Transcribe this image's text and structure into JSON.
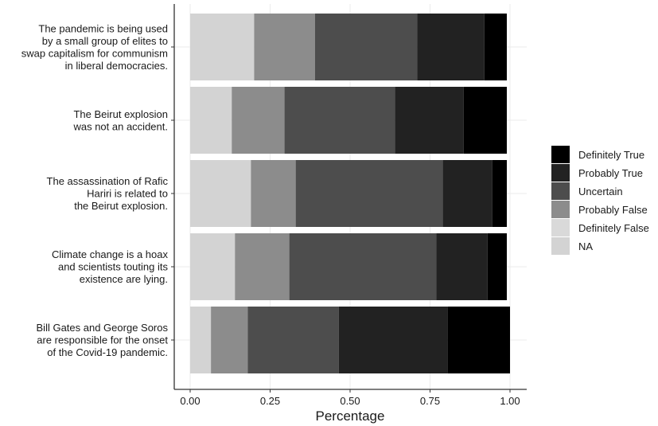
{
  "chart_data": {
    "type": "bar",
    "orientation": "horizontal",
    "stacked": true,
    "xlabel": "Percentage",
    "ylabel": "",
    "xlim": [
      0,
      1
    ],
    "x_ticks": [
      "0.00",
      "0.25",
      "0.50",
      "0.75",
      "1.00"
    ],
    "x_tick_values": [
      0,
      0.25,
      0.5,
      0.75,
      1.0
    ],
    "grid": true,
    "legend_position": "right",
    "categories": [
      [
        "The pandemic is being used",
        "by a small group of elites to",
        "swap capitalism for communism",
        "in liberal democracies."
      ],
      [
        "The Beirut explosion",
        "was not an accident."
      ],
      [
        "The assassination of Rafic",
        "Hariri is related to",
        "the Beirut explosion."
      ],
      [
        "Climate change is a hoax",
        "and scientists touting its",
        "existence are lying."
      ],
      [
        "Bill Gates and George Soros",
        "are responsible for the onset",
        "of the Covid-19 pandemic."
      ]
    ],
    "series": [
      {
        "name": "NA",
        "color": "#d3d3d3",
        "values": [
          0.2,
          0.13,
          0.19,
          0.14,
          0.065
        ]
      },
      {
        "name": "Definitely False",
        "color": "#d9d9d9",
        "values": [
          0,
          0,
          0,
          0,
          0
        ]
      },
      {
        "name": "Probably False",
        "color": "#8c8c8c",
        "values": [
          0.19,
          0.165,
          0.14,
          0.17,
          0.115
        ]
      },
      {
        "name": "Uncertain",
        "color": "#4d4d4d",
        "values": [
          0.32,
          0.345,
          0.46,
          0.46,
          0.285
        ]
      },
      {
        "name": "Probably True",
        "color": "#222222",
        "values": [
          0.21,
          0.215,
          0.155,
          0.16,
          0.34
        ]
      },
      {
        "name": "Definitely True",
        "color": "#000000",
        "values": [
          0.07,
          0.135,
          0.045,
          0.06,
          0.195
        ]
      }
    ],
    "legend_order": [
      "Definitely True",
      "Probably True",
      "Uncertain",
      "Probably False",
      "Definitely False",
      "NA"
    ]
  }
}
